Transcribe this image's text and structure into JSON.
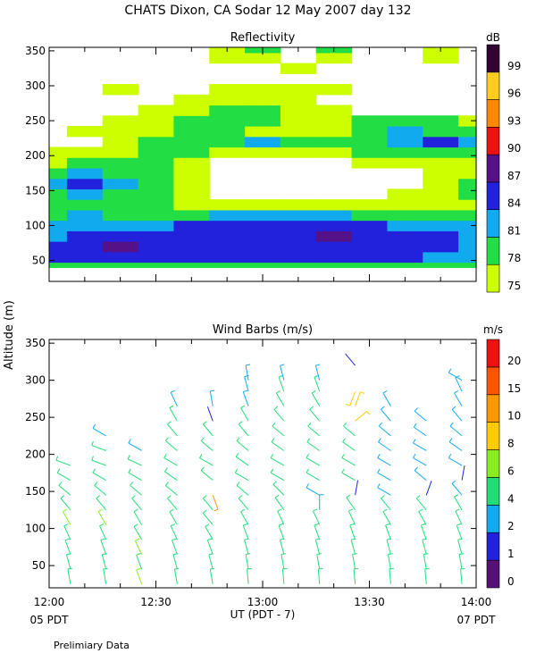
{
  "page": {
    "title": "CHATS Dixon, CA  Sodar  12 May 2007  day 132",
    "footer_note": "Prelimiary Data",
    "y_axis_label": "Altitude (m)",
    "x_axis_label": "UT  (PDT - 7)",
    "x_left_sub": "05 PDT",
    "x_right_sub": "07 PDT"
  },
  "chart_data": [
    {
      "type": "heatmap",
      "title": "Reflectivity",
      "x_ticks": [
        "12:00",
        "12:30",
        "13:00",
        "13:30",
        "14:00"
      ],
      "x_range_minutes": [
        0,
        120
      ],
      "y_ticks": [
        50,
        100,
        150,
        200,
        250,
        300,
        350
      ],
      "ylim": [
        20,
        355
      ],
      "colorbar": {
        "unit": "dB",
        "levels": [
          75,
          78,
          81,
          84,
          87,
          90,
          93,
          96,
          99
        ],
        "colors": [
          "#ccff00",
          "#22dd44",
          "#11aaee",
          "#2222dd",
          "#551188",
          "#ee1111",
          "#ff8800",
          "#ffcc22",
          "#330033"
        ]
      },
      "times_min": [
        0,
        10,
        20,
        30,
        40,
        50,
        60,
        70,
        80,
        90,
        100,
        110,
        120
      ],
      "heights_m": [
        40,
        55,
        70,
        85,
        100,
        115,
        130,
        145,
        160,
        175,
        190,
        205,
        220,
        235,
        250,
        265,
        280,
        295,
        310,
        325,
        340,
        355
      ],
      "grid_db": [
        [
          80,
          80,
          80,
          80,
          80,
          80,
          80,
          80,
          80,
          80,
          80,
          80,
          80
        ],
        [
          84,
          85,
          86,
          85,
          84,
          84,
          84,
          84,
          84,
          84,
          84,
          83,
          82
        ],
        [
          84,
          86,
          87,
          86,
          84,
          85,
          85,
          85,
          86,
          85,
          84,
          84,
          83
        ],
        [
          83,
          84,
          85,
          85,
          86,
          85,
          85,
          86,
          87,
          86,
          85,
          84,
          82
        ],
        [
          81,
          82,
          82,
          83,
          84,
          84,
          84,
          84,
          84,
          84,
          83,
          82,
          81
        ],
        [
          80,
          81,
          80,
          79,
          80,
          81,
          81,
          81,
          81,
          80,
          80,
          80,
          80
        ],
        [
          79,
          80,
          79,
          78,
          77,
          76,
          77,
          77,
          77,
          77,
          76,
          77,
          77
        ],
        [
          80,
          81,
          80,
          78,
          76,
          74,
          74,
          74,
          74,
          74,
          75,
          76,
          78
        ],
        [
          81,
          85,
          82,
          79,
          77,
          74,
          73,
          73,
          73,
          73,
          74,
          76,
          78
        ],
        [
          80,
          81,
          79,
          78,
          77,
          74,
          73,
          73,
          73,
          73,
          74,
          75,
          76
        ],
        [
          76,
          78,
          78,
          78,
          77,
          74,
          73,
          73,
          74,
          75,
          76,
          77,
          77
        ],
        [
          75,
          76,
          77,
          78,
          79,
          77,
          76,
          77,
          77,
          78,
          79,
          79,
          78
        ],
        [
          74,
          74,
          76,
          78,
          80,
          80,
          81,
          79,
          78,
          79,
          82,
          84,
          82
        ],
        [
          74,
          75,
          76,
          77,
          78,
          79,
          77,
          76,
          77,
          80,
          81,
          80,
          79
        ],
        [
          73,
          74,
          75,
          76,
          78,
          79,
          78,
          77,
          77,
          78,
          79,
          78,
          77
        ],
        [
          72,
          73,
          74,
          76,
          77,
          78,
          79,
          77,
          75,
          74,
          74,
          73,
          72
        ],
        [
          72,
          72,
          73,
          74,
          75,
          77,
          77,
          76,
          74,
          72,
          72,
          73,
          73
        ],
        [
          72,
          72,
          75,
          73,
          74,
          75,
          76,
          76,
          75,
          73,
          72,
          72,
          73
        ],
        [
          72,
          72,
          72,
          72,
          74,
          74,
          74,
          74,
          73,
          72,
          72,
          72,
          72
        ],
        [
          72,
          72,
          72,
          72,
          72,
          74,
          73,
          75,
          74,
          72,
          72,
          73,
          72
        ],
        [
          72,
          72,
          72,
          72,
          72,
          75,
          77,
          74,
          76,
          74,
          72,
          76,
          72
        ],
        [
          72,
          72,
          72,
          72,
          72,
          75,
          79,
          74,
          78,
          74,
          72,
          76,
          72
        ]
      ]
    },
    {
      "type": "scatter",
      "title": "Wind Barbs (m/s)",
      "x_ticks": [
        "12:00",
        "12:30",
        "13:00",
        "13:30",
        "14:00"
      ],
      "x_range_minutes": [
        0,
        120
      ],
      "y_ticks": [
        50,
        100,
        150,
        200,
        250,
        300,
        350
      ],
      "ylim": [
        20,
        355
      ],
      "colorbar": {
        "unit": "m/s",
        "levels": [
          0,
          1,
          2,
          4,
          6,
          8,
          10,
          15,
          20
        ],
        "colors": [
          "#551177",
          "#2222dd",
          "#11aaee",
          "#22dd77",
          "#88ee22",
          "#ffcc00",
          "#ff9900",
          "#ff5500",
          "#ee1111"
        ]
      },
      "profiles": [
        {
          "t": 6,
          "heights": [
            25,
            45,
            65,
            85,
            105,
            125,
            145,
            165,
            185
          ],
          "speeds": [
            5,
            5,
            5,
            5,
            6,
            5,
            5,
            5,
            5
          ],
          "dirs": [
            350,
            345,
            340,
            335,
            330,
            320,
            310,
            300,
            290
          ]
        },
        {
          "t": 16,
          "heights": [
            25,
            45,
            65,
            85,
            105,
            125,
            145,
            165,
            185,
            205,
            225
          ],
          "speeds": [
            5,
            5,
            5,
            5,
            6,
            5,
            5,
            5,
            4,
            4,
            3
          ],
          "dirs": [
            350,
            345,
            340,
            335,
            330,
            320,
            310,
            300,
            290,
            290,
            300
          ]
        },
        {
          "t": 26,
          "heights": [
            25,
            45,
            65,
            85,
            105,
            125,
            145,
            165,
            185,
            205
          ],
          "speeds": [
            6,
            5,
            6,
            5,
            5,
            5,
            5,
            4,
            4,
            3
          ],
          "dirs": [
            340,
            340,
            335,
            330,
            330,
            320,
            310,
            300,
            295,
            300
          ]
        },
        {
          "t": 36,
          "heights": [
            25,
            45,
            65,
            85,
            105,
            125,
            145,
            165,
            185,
            205,
            225,
            245,
            265
          ],
          "speeds": [
            5,
            5,
            5,
            5,
            5,
            5,
            5,
            5,
            4,
            5,
            4,
            4,
            3
          ],
          "dirs": [
            350,
            345,
            340,
            335,
            330,
            320,
            310,
            305,
            300,
            310,
            320,
            330,
            335
          ]
        },
        {
          "t": 46,
          "heights": [
            25,
            45,
            65,
            85,
            105,
            125,
            145,
            165,
            185,
            205,
            225,
            245,
            265
          ],
          "speeds": [
            5,
            5,
            5,
            5,
            5,
            5,
            10,
            5,
            4,
            4,
            4,
            1,
            3
          ],
          "dirs": [
            350,
            345,
            340,
            330,
            320,
            320,
            160,
            310,
            300,
            310,
            320,
            340,
            350
          ]
        },
        {
          "t": 56,
          "heights": [
            25,
            45,
            65,
            85,
            105,
            125,
            145,
            165,
            185,
            205,
            225,
            245,
            265,
            285,
            300
          ],
          "speeds": [
            5,
            5,
            5,
            5,
            5,
            5,
            5,
            4,
            4,
            4,
            4,
            4,
            3,
            3,
            3
          ],
          "dirs": [
            355,
            350,
            345,
            340,
            330,
            320,
            310,
            300,
            305,
            310,
            320,
            330,
            340,
            345,
            350
          ]
        },
        {
          "t": 66,
          "heights": [
            25,
            45,
            65,
            85,
            105,
            125,
            145,
            165,
            185,
            205,
            225,
            245,
            265,
            285,
            300
          ],
          "speeds": [
            5,
            5,
            5,
            5,
            5,
            5,
            5,
            5,
            4,
            4,
            4,
            4,
            4,
            4,
            3
          ],
          "dirs": [
            355,
            350,
            345,
            340,
            335,
            325,
            315,
            300,
            300,
            305,
            310,
            320,
            330,
            340,
            345
          ]
        },
        {
          "t": 76,
          "heights": [
            25,
            45,
            65,
            85,
            105,
            125,
            145,
            165,
            185,
            205,
            225,
            245,
            265,
            285,
            300
          ],
          "speeds": [
            5,
            5,
            5,
            5,
            4,
            3,
            3,
            4,
            4,
            4,
            4,
            4,
            4,
            4,
            3
          ],
          "dirs": [
            355,
            350,
            345,
            340,
            335,
            360,
            300,
            300,
            300,
            305,
            310,
            320,
            330,
            340,
            345
          ]
        },
        {
          "t": 86,
          "heights": [
            25,
            45,
            65,
            85,
            105,
            125,
            145,
            165,
            185,
            205,
            225,
            245,
            265,
            285,
            320
          ],
          "speeds": [
            5,
            5,
            5,
            5,
            4,
            4,
            1,
            4,
            4,
            4,
            4,
            8,
            8,
            8,
            1
          ],
          "dirs": [
            355,
            350,
            345,
            340,
            335,
            325,
            10,
            300,
            300,
            305,
            310,
            50,
            20,
            200,
            320
          ]
        },
        {
          "t": 96,
          "heights": [
            25,
            45,
            65,
            85,
            105,
            125,
            145,
            165,
            185,
            205,
            225,
            245,
            265
          ],
          "speeds": [
            5,
            5,
            5,
            5,
            4,
            4,
            3,
            3,
            3,
            3,
            3,
            3,
            3
          ],
          "dirs": [
            355,
            350,
            345,
            340,
            330,
            320,
            300,
            300,
            300,
            305,
            310,
            320,
            330
          ]
        },
        {
          "t": 106,
          "heights": [
            25,
            45,
            65,
            85,
            105,
            125,
            145,
            165,
            185,
            205,
            225,
            245
          ],
          "speeds": [
            5,
            5,
            5,
            5,
            4,
            4,
            1,
            3,
            3,
            3,
            3,
            3
          ],
          "dirs": [
            355,
            350,
            345,
            340,
            330,
            320,
            20,
            310,
            300,
            300,
            305,
            310
          ]
        },
        {
          "t": 116,
          "heights": [
            25,
            45,
            65,
            85,
            105,
            125,
            145,
            165,
            185,
            205,
            225,
            245,
            265,
            285,
            300
          ],
          "speeds": [
            5,
            5,
            5,
            5,
            4,
            4,
            3,
            1,
            3,
            3,
            3,
            3,
            3,
            3,
            2
          ],
          "dirs": [
            355,
            350,
            345,
            340,
            335,
            330,
            320,
            10,
            300,
            305,
            310,
            320,
            330,
            335,
            300
          ]
        }
      ]
    }
  ]
}
